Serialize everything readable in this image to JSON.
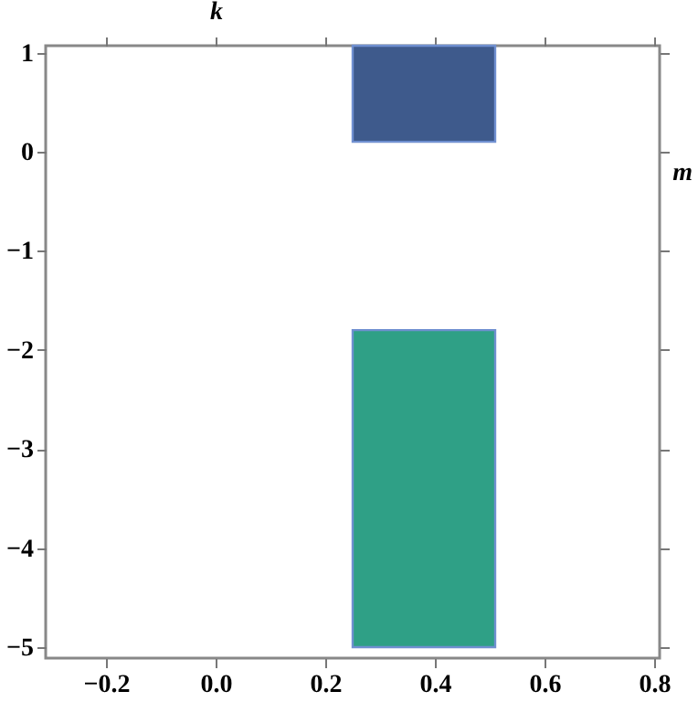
{
  "chart_data": {
    "type": "bar",
    "xlabel": "m",
    "ylabel": "k",
    "xlim": [
      -0.31,
      0.81
    ],
    "ylim": [
      -5.11,
      1.07
    ],
    "xticks": [
      {
        "value": -0.2,
        "label": "−0.2"
      },
      {
        "value": 0,
        "label": "0.0"
      },
      0.2,
      0.4,
      0.6,
      0.8
    ],
    "yticks": [
      {
        "value": -5,
        "label": "−5"
      },
      {
        "value": -4,
        "label": "−4"
      },
      {
        "value": -3,
        "label": "−3"
      },
      {
        "value": -2,
        "label": "−2"
      },
      {
        "value": -1,
        "label": "−1"
      },
      0,
      1
    ],
    "grid": false,
    "x": [
      0.38,
      0.38
    ],
    "base": [
      0.1,
      -5
    ],
    "values": [
      0.97,
      3.2
    ],
    "colors": [
      "#3e5a8c",
      "#2fa086"
    ]
  }
}
